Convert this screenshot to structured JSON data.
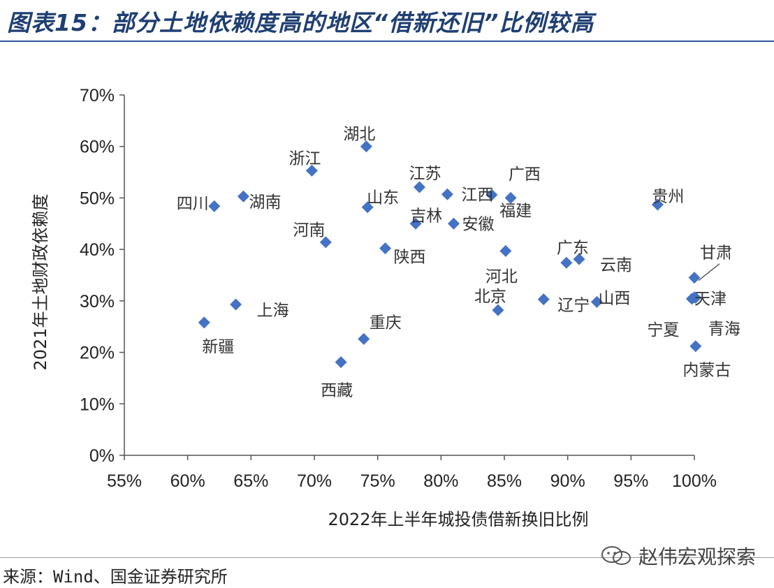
{
  "title": "图表15：部分土地依赖度高的地区“借新还旧”比例较高",
  "source": "来源：Wind、国金证券研究所",
  "watermark": "赵伟宏观探索",
  "colors": {
    "marker": "#4472c4",
    "title": "#1f3f73",
    "rule": "#2f5597"
  },
  "chart_data": {
    "type": "scatter",
    "title": "",
    "xlabel": "2022年上半年城投债借新换旧比例",
    "ylabel": "2021年土地财政依赖度",
    "xlim": [
      55,
      100
    ],
    "ylim": [
      0,
      70
    ],
    "xticks": [
      "55%",
      "60%",
      "65%",
      "70%",
      "75%",
      "80%",
      "85%",
      "90%",
      "95%",
      "100%"
    ],
    "yticks": [
      "0%",
      "10%",
      "20%",
      "30%",
      "40%",
      "50%",
      "60%",
      "70%"
    ],
    "points": [
      {
        "name": "湖北",
        "x": 74.1,
        "y": 60.0
      },
      {
        "name": "浙江",
        "x": 69.8,
        "y": 55.3
      },
      {
        "name": "四川",
        "x": 62.1,
        "y": 48.4
      },
      {
        "name": "湖南",
        "x": 64.4,
        "y": 50.3
      },
      {
        "name": "山东",
        "x": 74.2,
        "y": 48.2
      },
      {
        "name": "江苏",
        "x": 78.3,
        "y": 52.1
      },
      {
        "name": "江西",
        "x": 80.5,
        "y": 50.7
      },
      {
        "name": "广西",
        "x": 84.0,
        "y": 50.6
      },
      {
        "name": "福建",
        "x": 85.5,
        "y": 50.0
      },
      {
        "name": "吉林",
        "x": 78.0,
        "y": 45.0
      },
      {
        "name": "安徽",
        "x": 81.0,
        "y": 45.0
      },
      {
        "name": "河南",
        "x": 70.9,
        "y": 41.4
      },
      {
        "name": "陕西",
        "x": 75.6,
        "y": 40.2
      },
      {
        "name": "贵州",
        "x": 97.1,
        "y": 48.7
      },
      {
        "name": "广东",
        "x": 89.9,
        "y": 37.4
      },
      {
        "name": "云南",
        "x": 90.9,
        "y": 38.1
      },
      {
        "name": "河北",
        "x": 85.1,
        "y": 39.7
      },
      {
        "name": "北京",
        "x": 84.5,
        "y": 28.2
      },
      {
        "name": "辽宁",
        "x": 88.1,
        "y": 30.3
      },
      {
        "name": "山西",
        "x": 92.3,
        "y": 29.8
      },
      {
        "name": "甘肃",
        "x": 100.0,
        "y": 34.5
      },
      {
        "name": "天津",
        "x": 100.0,
        "y": 30.7
      },
      {
        "name": "宁夏",
        "x": 99.8,
        "y": 30.4
      },
      {
        "name": "青海",
        "x": 100.1,
        "y": 30.6
      },
      {
        "name": "内蒙古",
        "x": 100.1,
        "y": 21.2
      },
      {
        "name": "上海",
        "x": 63.8,
        "y": 29.3
      },
      {
        "name": "新疆",
        "x": 61.3,
        "y": 25.8
      },
      {
        "name": "重庆",
        "x": 73.9,
        "y": 22.6
      },
      {
        "name": "西藏",
        "x": 72.1,
        "y": 18.1
      }
    ]
  }
}
